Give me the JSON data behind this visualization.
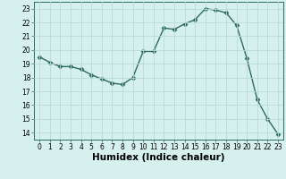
{
  "xlabel": "Humidex (Indice chaleur)",
  "x": [
    0,
    1,
    2,
    3,
    4,
    5,
    6,
    7,
    8,
    9,
    10,
    11,
    12,
    13,
    14,
    15,
    16,
    17,
    18,
    19,
    20,
    21,
    22,
    23
  ],
  "y": [
    19.5,
    19.1,
    18.8,
    18.8,
    18.6,
    18.2,
    17.9,
    17.6,
    17.5,
    18.0,
    19.9,
    19.9,
    21.6,
    21.5,
    21.9,
    22.2,
    23.0,
    22.9,
    22.7,
    21.8,
    19.4,
    16.4,
    15.0,
    13.9
  ],
  "line_color": "#2e6b5e",
  "marker": "D",
  "marker_size": 2.5,
  "bg_color": "#d6f0ee",
  "grid_color": "#b8dbd8",
  "ylim": [
    13.5,
    23.5
  ],
  "xlim": [
    -0.5,
    23.5
  ],
  "yticks": [
    14,
    15,
    16,
    17,
    18,
    19,
    20,
    21,
    22,
    23
  ],
  "xticks": [
    0,
    1,
    2,
    3,
    4,
    5,
    6,
    7,
    8,
    9,
    10,
    11,
    12,
    13,
    14,
    15,
    16,
    17,
    18,
    19,
    20,
    21,
    22,
    23
  ],
  "tick_fontsize": 5.5,
  "xlabel_fontsize": 7.5,
  "line_width": 1.0,
  "border_color": "#2e6b5e"
}
